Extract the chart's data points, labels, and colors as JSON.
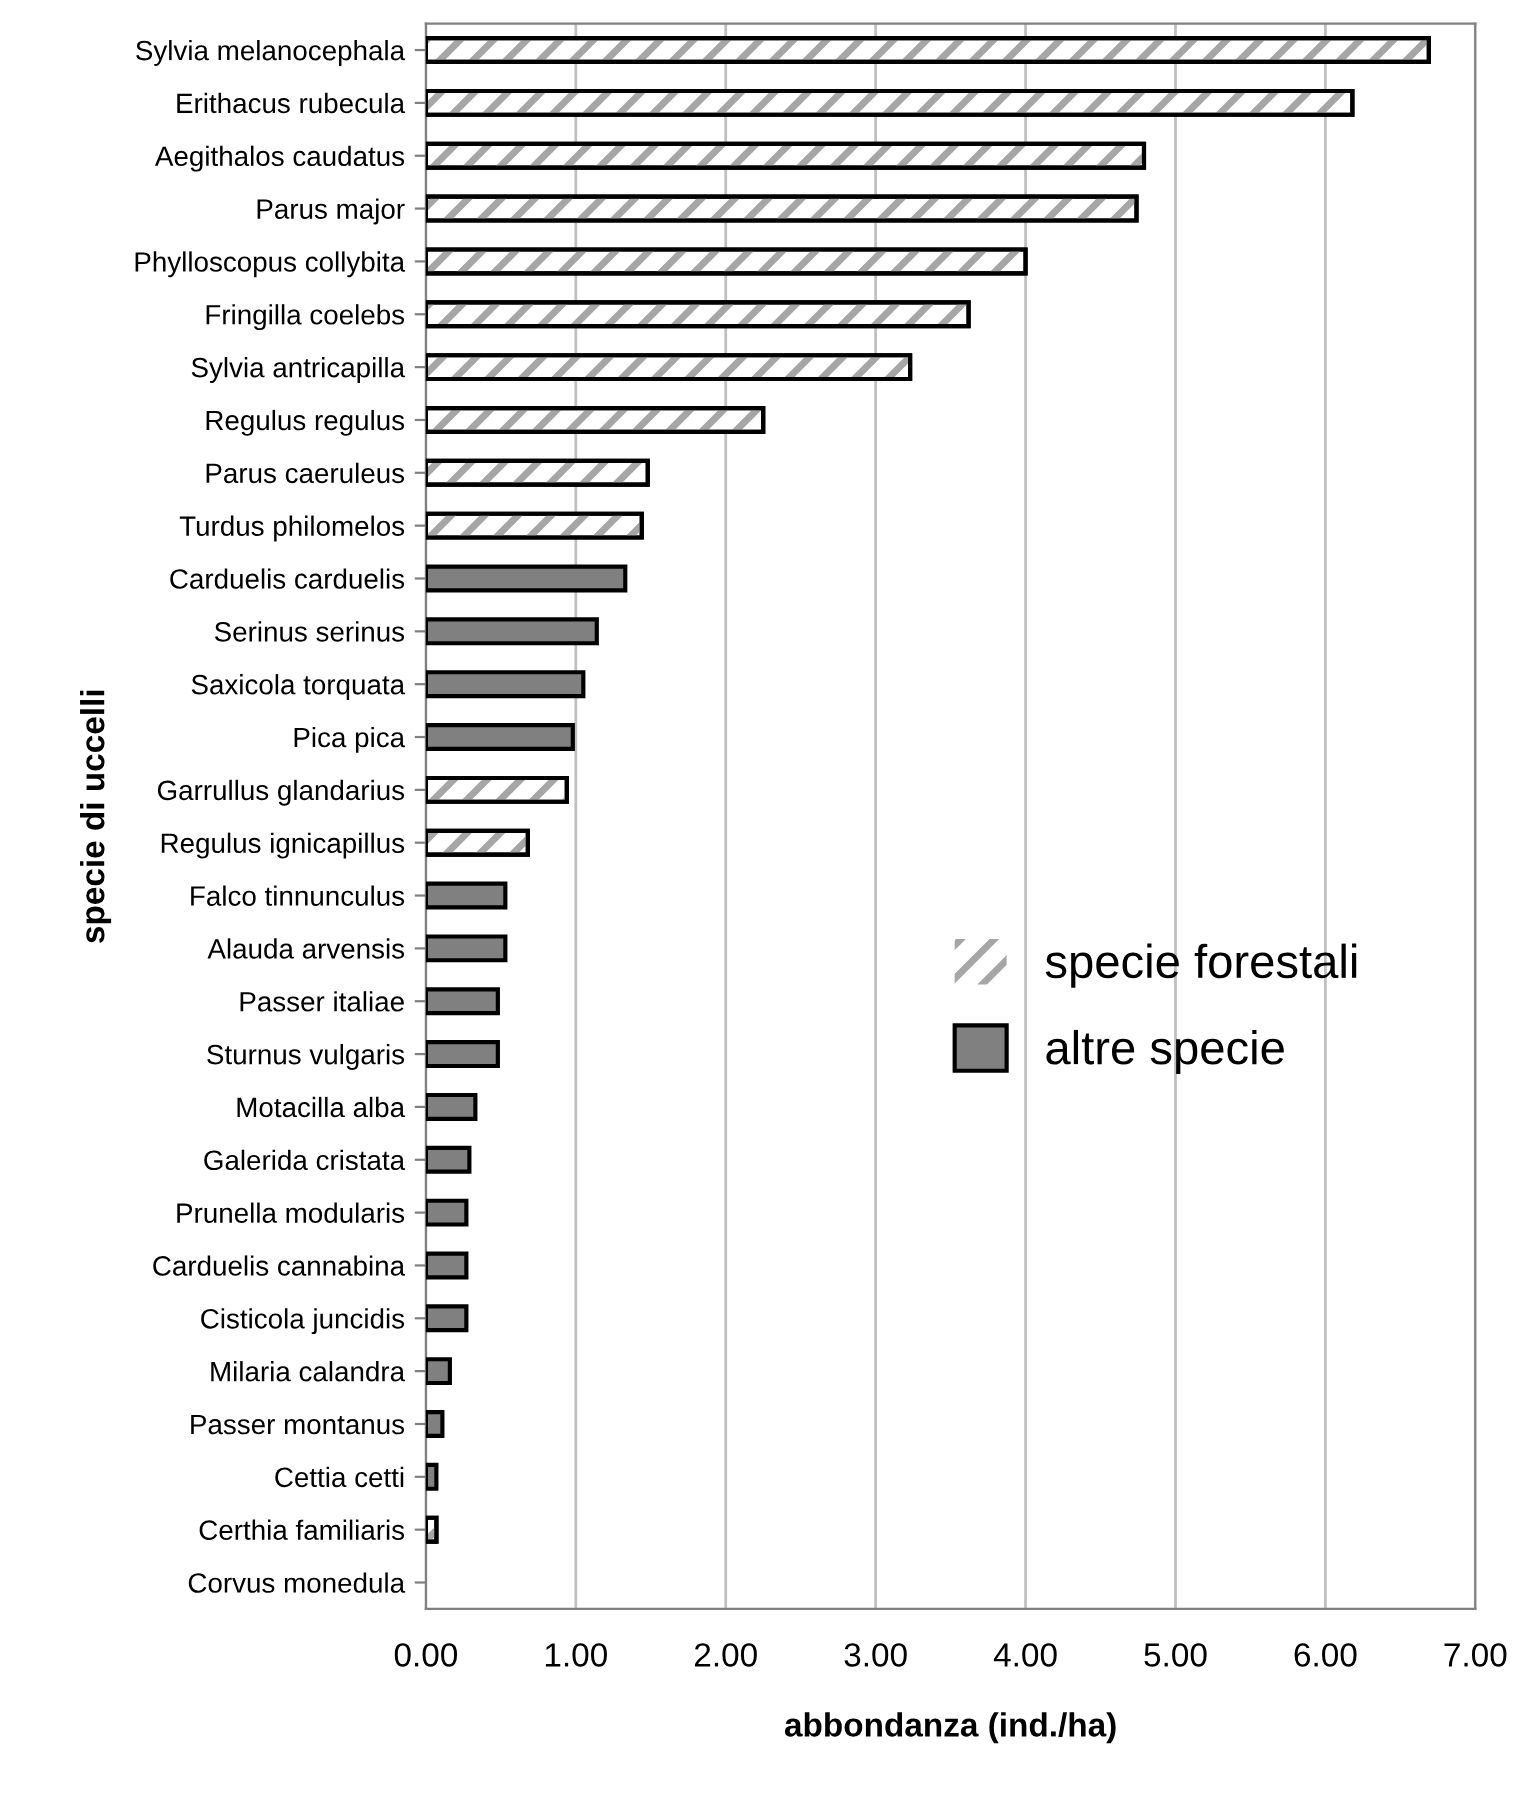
{
  "chart_data": {
    "type": "bar",
    "orientation": "horizontal",
    "xlabel": "abbondanza (ind./ha)",
    "ylabel": "specie di uccelli",
    "categories": [
      "Sylvia melanocephala",
      "Erithacus rubecula",
      "Aegithalos caudatus",
      "Parus major",
      "Phylloscopus collybita",
      "Fringilla coelebs",
      "Sylvia antricapilla",
      "Regulus regulus",
      "Parus caeruleus",
      "Turdus philomelos",
      "Carduelis carduelis",
      "Serinus serinus",
      "Saxicola torquata",
      "Pica pica",
      "Garrullus glandarius",
      "Regulus ignicapillus",
      "Falco tinnunculus",
      "Alauda arvensis",
      "Passer italiae",
      "Sturnus vulgaris",
      "Motacilla alba",
      "Galerida cristata",
      "Prunella modularis",
      "Carduelis cannabina",
      "Cisticola juncidis",
      "Milaria calandra",
      "Passer montanus",
      "Cettia cetti",
      "Certhia familiaris",
      "Corvus monedula"
    ],
    "series": [
      {
        "name": "specie forestali",
        "color": "#a6a6a6",
        "values": [
          6.69,
          6.18,
          4.79,
          4.74,
          4.0,
          3.62,
          3.23,
          2.25,
          1.48,
          1.44,
          null,
          null,
          null,
          null,
          0.94,
          0.68,
          null,
          null,
          null,
          null,
          null,
          null,
          null,
          null,
          null,
          null,
          null,
          null,
          0.07,
          null
        ]
      },
      {
        "name": "altre specie",
        "color": "#808080",
        "values": [
          null,
          null,
          null,
          null,
          null,
          null,
          null,
          null,
          null,
          null,
          1.33,
          1.14,
          1.05,
          0.98,
          null,
          null,
          0.53,
          0.53,
          0.48,
          0.48,
          0.33,
          0.29,
          0.27,
          0.27,
          0.27,
          0.16,
          0.11,
          0.07,
          null,
          null
        ]
      }
    ],
    "xlim": [
      0,
      7
    ],
    "xticks": [
      {
        "value": 0,
        "label": "0.00"
      },
      {
        "value": 1,
        "label": "1.00"
      },
      {
        "value": 2,
        "label": "2.00"
      },
      {
        "value": 3,
        "label": "3.00"
      },
      {
        "value": 4,
        "label": "4.00"
      },
      {
        "value": 5,
        "label": "5.00"
      },
      {
        "value": 6,
        "label": "6.00"
      },
      {
        "value": 7,
        "label": "7.00"
      }
    ],
    "grid": "x",
    "legend": "right"
  }
}
